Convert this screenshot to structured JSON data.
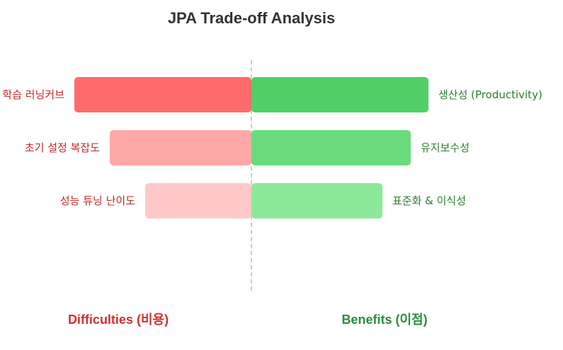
{
  "chart_data": {
    "type": "bar",
    "orientation": "horizontal-diverging",
    "title": "JPA Trade-off Analysis",
    "grid": false,
    "legend": "none",
    "difficulties": {
      "name": "Difficulties (비용)",
      "color": "#d32f2f",
      "items": [
        {
          "label": "학습 러닝커브",
          "value": 5,
          "color": "#ff6b6b"
        },
        {
          "label": "초기 설정 복잡도",
          "value": 4,
          "color": "#ffa8a8"
        },
        {
          "label": "성능 튜닝 난이도",
          "value": 3,
          "color": "#ffc9c9"
        }
      ]
    },
    "benefits": {
      "name": "Benefits (이점)",
      "color": "#2e8b3e",
      "items": [
        {
          "label": "생산성 (Productivity)",
          "value": 5,
          "color": "#51cf66"
        },
        {
          "label": "유지보수성",
          "value": 4.5,
          "color": "#69db7c"
        },
        {
          "label": "표준화 & 이식성",
          "value": 3.7,
          "color": "#8ce99a"
        }
      ]
    },
    "divider_color": "#cccccc",
    "title_color": "#333333",
    "left_label_color": "#c62828",
    "right_label_color": "#2e7d32"
  }
}
